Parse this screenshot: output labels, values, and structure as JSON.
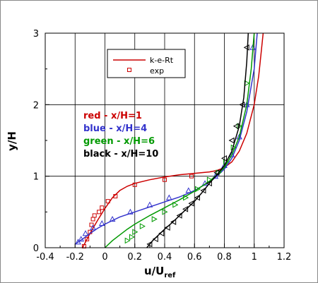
{
  "chart_data": {
    "type": "line",
    "xlabel": "u/U",
    "xlabel_sub": "ref",
    "ylabel": "y/H",
    "xlim": [
      -0.4,
      1.2
    ],
    "ylim": [
      0,
      3
    ],
    "x_ticks": [
      -0.4,
      -0.2,
      0,
      0.2,
      0.4,
      0.6,
      0.8,
      1,
      1.2
    ],
    "x_tick_labels": [
      "-0.4",
      "-0.2",
      "0",
      "0.2",
      "0.4",
      "0.6",
      "0.8",
      "1",
      "1.2"
    ],
    "y_ticks": [
      0,
      1,
      2,
      3
    ],
    "y_tick_labels": [
      "0",
      "1",
      "2",
      "3"
    ],
    "grid": true,
    "legend": {
      "placement": "top-center",
      "entries": [
        {
          "label": "k-e-Rt",
          "kind": "line",
          "color": "#cc0000"
        },
        {
          "label": "exp",
          "kind": "marker",
          "color": "#cc0000"
        }
      ]
    },
    "annotations": [
      {
        "text": "red - x/H=1",
        "color": "#cc0000"
      },
      {
        "text": "blue - x/H=4",
        "color": "#3333cc"
      },
      {
        "text": "green - x/H=6",
        "color": "#009900"
      },
      {
        "text": "black - x/H=10",
        "color": "#000000"
      }
    ],
    "series": [
      {
        "color": "#cc0000",
        "kind": "line",
        "x": [
          -0.15,
          -0.1,
          -0.05,
          0,
          0.05,
          0.1,
          0.15,
          0.2,
          0.3,
          0.4,
          0.5,
          0.6,
          0.7,
          0.75,
          0.8,
          0.85,
          0.9,
          0.95,
          1.0,
          1.03,
          1.05,
          1.06
        ],
        "y": [
          0,
          0.2,
          0.38,
          0.55,
          0.7,
          0.8,
          0.86,
          0.9,
          0.95,
          0.99,
          1.02,
          1.04,
          1.06,
          1.08,
          1.12,
          1.2,
          1.35,
          1.6,
          2.0,
          2.4,
          2.8,
          3.0
        ]
      },
      {
        "color": "#cc0000",
        "kind": "markers",
        "x": [
          -0.14,
          -0.12,
          -0.1,
          -0.09,
          -0.08,
          -0.07,
          -0.04,
          -0.02,
          0.02,
          0.07,
          0.2,
          0.4,
          0.58
        ],
        "y": [
          0.02,
          0.12,
          0.22,
          0.32,
          0.4,
          0.45,
          0.5,
          0.56,
          0.65,
          0.72,
          0.88,
          0.95,
          1.0
        ]
      },
      {
        "color": "#3333cc",
        "kind": "line",
        "x": [
          -0.2,
          -0.15,
          -0.1,
          -0.05,
          0,
          0.05,
          0.1,
          0.2,
          0.3,
          0.4,
          0.5,
          0.6,
          0.7,
          0.75,
          0.8,
          0.85,
          0.9,
          0.95,
          1.0,
          1.02
        ],
        "y": [
          0.05,
          0.12,
          0.2,
          0.27,
          0.33,
          0.38,
          0.43,
          0.5,
          0.57,
          0.64,
          0.71,
          0.8,
          0.92,
          1.0,
          1.1,
          1.25,
          1.5,
          1.9,
          2.5,
          3.0
        ]
      },
      {
        "color": "#3333cc",
        "kind": "markers",
        "x": [
          -0.18,
          -0.16,
          -0.13,
          -0.08,
          -0.02,
          0.05,
          0.17,
          0.3,
          0.43,
          0.56,
          0.67,
          0.74,
          0.8,
          0.85,
          0.9,
          0.95,
          0.99
        ],
        "y": [
          0.08,
          0.12,
          0.2,
          0.28,
          0.34,
          0.4,
          0.5,
          0.6,
          0.7,
          0.8,
          0.9,
          1.0,
          1.15,
          1.3,
          1.55,
          2.0,
          2.8
        ]
      },
      {
        "color": "#009900",
        "kind": "line",
        "x": [
          0.0,
          0.05,
          0.1,
          0.15,
          0.2,
          0.3,
          0.4,
          0.5,
          0.6,
          0.7,
          0.75,
          0.8,
          0.85,
          0.9,
          0.95,
          0.98,
          1.0
        ],
        "y": [
          0,
          0.1,
          0.18,
          0.26,
          0.33,
          0.45,
          0.56,
          0.67,
          0.79,
          0.93,
          1.02,
          1.12,
          1.3,
          1.55,
          2.0,
          2.5,
          3.0
        ]
      },
      {
        "color": "#009900",
        "kind": "markers",
        "x": [
          0.15,
          0.18,
          0.2,
          0.25,
          0.33,
          0.4,
          0.47,
          0.54,
          0.62,
          0.7,
          0.76,
          0.81,
          0.86,
          0.9,
          0.95
        ],
        "y": [
          0.1,
          0.15,
          0.22,
          0.3,
          0.4,
          0.5,
          0.6,
          0.7,
          0.82,
          0.95,
          1.05,
          1.2,
          1.4,
          1.7,
          2.3
        ]
      },
      {
        "color": "#000000",
        "kind": "line",
        "x": [
          0.28,
          0.32,
          0.36,
          0.4,
          0.45,
          0.5,
          0.55,
          0.6,
          0.65,
          0.7,
          0.75,
          0.8,
          0.85,
          0.9,
          0.93,
          0.95,
          0.96
        ],
        "y": [
          0,
          0.1,
          0.18,
          0.26,
          0.35,
          0.45,
          0.55,
          0.65,
          0.77,
          0.9,
          1.02,
          1.15,
          1.35,
          1.7,
          2.1,
          2.6,
          3.0
        ]
      },
      {
        "color": "#000000",
        "kind": "markers",
        "x": [
          0.3,
          0.34,
          0.38,
          0.42,
          0.46,
          0.5,
          0.54,
          0.58,
          0.62,
          0.66,
          0.7,
          0.75,
          0.8,
          0.85,
          0.88,
          0.92,
          0.95
        ],
        "y": [
          0.05,
          0.12,
          0.2,
          0.28,
          0.36,
          0.45,
          0.54,
          0.62,
          0.7,
          0.8,
          0.9,
          1.05,
          1.25,
          1.5,
          1.7,
          2.0,
          2.8
        ]
      }
    ]
  }
}
